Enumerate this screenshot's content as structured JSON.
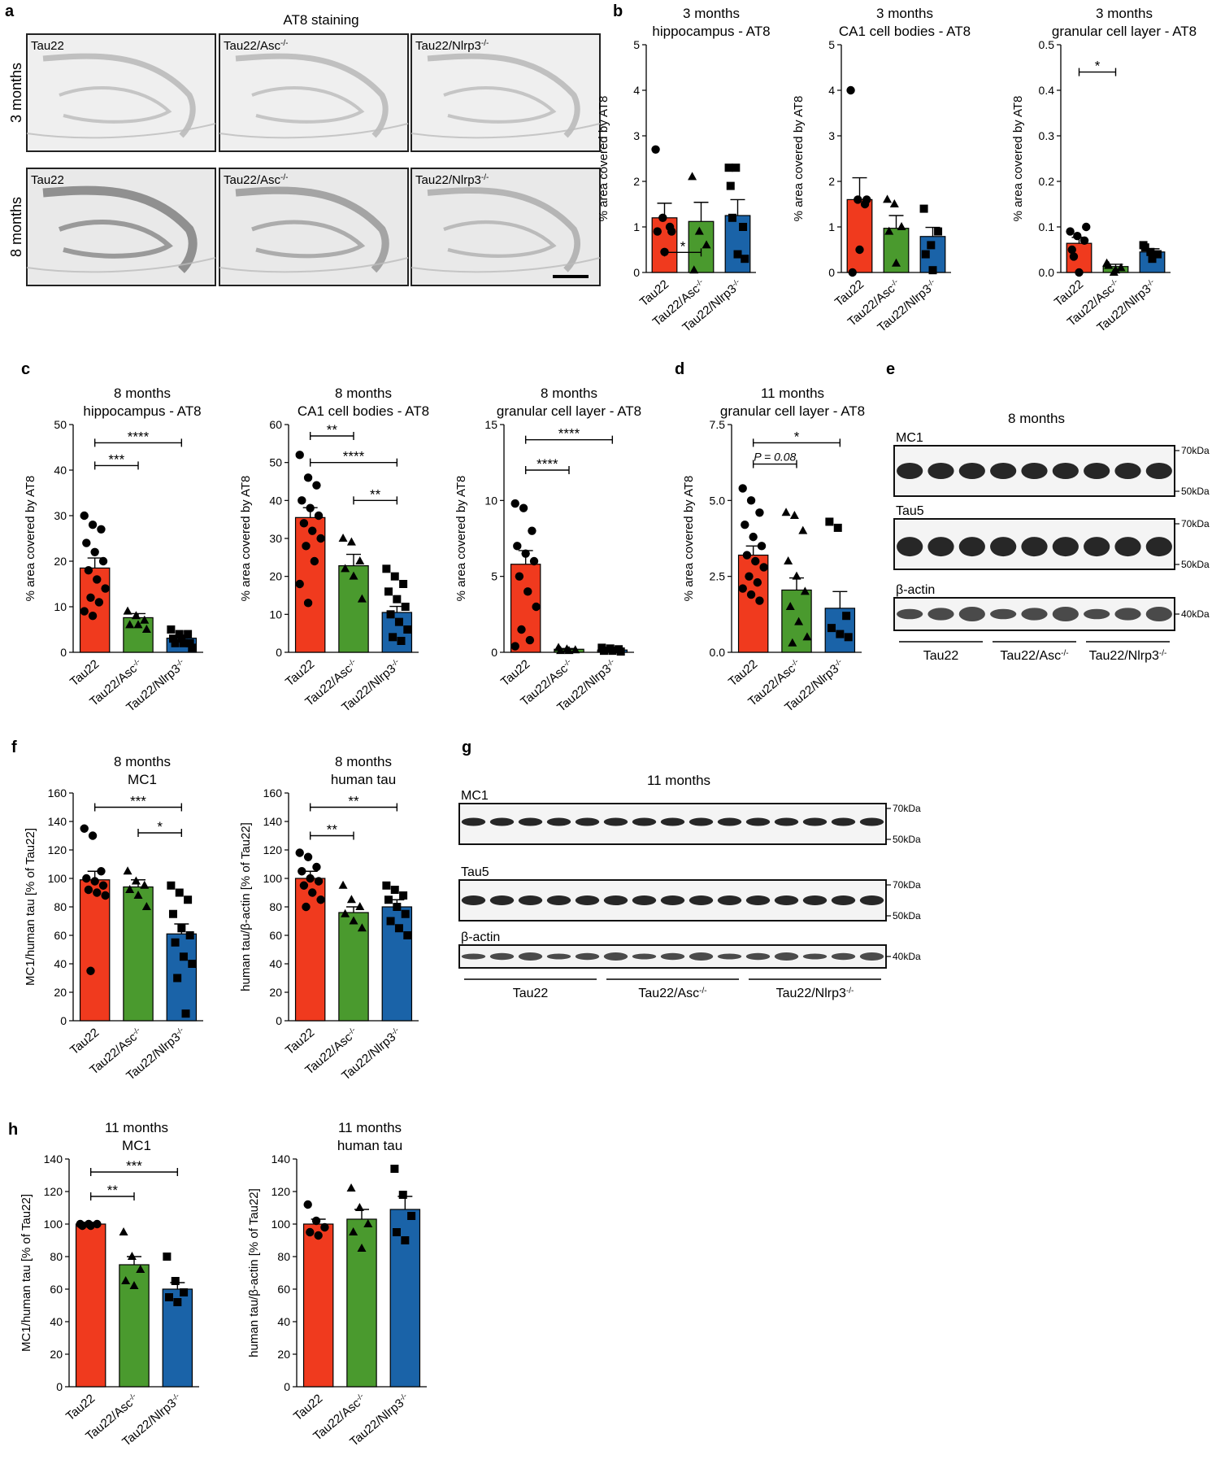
{
  "panel_labels": [
    "a",
    "b",
    "c",
    "d",
    "e",
    "f",
    "g",
    "h"
  ],
  "panel_a": {
    "title": "AT8 staining",
    "row_labels": [
      "3 months",
      "8 months"
    ],
    "column_tags": [
      "Tau22",
      "Tau22/Asc",
      "Tau22/Nlrp3"
    ],
    "knockout_sup": "-/-"
  },
  "groups": [
    "Tau22",
    "Tau22/Asc",
    "Tau22/Nlrp3"
  ],
  "knockout_sup": "-/-",
  "colors": {
    "tau22": "#f03a1e",
    "asc": "#4a9a2e",
    "nlrp3": "#1a63a8"
  },
  "chart_data": [
    {
      "id": "b1",
      "type": "bar",
      "title": [
        "3 months",
        "hippocampus - AT8"
      ],
      "ylabel": "% area covered by AT8",
      "ylim": [
        0,
        5
      ],
      "yticks": [
        "0",
        "1",
        "2",
        "3",
        "4",
        "5"
      ],
      "values": [
        1.2,
        1.12,
        1.25
      ],
      "errors": [
        0.32,
        0.42,
        0.35
      ],
      "points": [
        [
          2.7,
          1.2,
          1.0,
          0.9,
          0.45,
          0.9
        ],
        [
          2.1,
          0.9,
          0.6,
          0.05
        ],
        [
          2.3,
          2.3,
          1.0,
          1.9,
          0.4,
          0.3,
          1.2
        ]
      ],
      "sig": [
        {
          "a": 0,
          "b": 1,
          "label": "*",
          "y": 0.44
        }
      ]
    },
    {
      "id": "b2",
      "type": "bar",
      "title": [
        "3 months",
        "CA1 cell bodies - AT8"
      ],
      "ylabel": "% area covered by AT8",
      "ylim": [
        0,
        5
      ],
      "yticks": [
        "0",
        "1",
        "2",
        "3",
        "4",
        "5"
      ],
      "values": [
        1.6,
        0.97,
        0.79
      ],
      "errors": [
        0.48,
        0.28,
        0.2
      ],
      "points": [
        [
          4.0,
          1.6,
          1.5,
          0.0,
          0.5,
          1.6
        ],
        [
          1.6,
          1.5,
          1.0,
          0.9,
          0.2
        ],
        [
          1.4,
          0.6,
          0.9,
          0.4,
          0.05
        ]
      ],
      "sig": []
    },
    {
      "id": "b3",
      "type": "bar",
      "title": [
        "3 months",
        "granular cell layer - AT8"
      ],
      "ylabel": "% area covered by AT8",
      "ylim": [
        0,
        0.5
      ],
      "yticks": [
        "0.0",
        "0.1",
        "0.2",
        "0.3",
        "0.4",
        "0.5"
      ],
      "values": [
        0.064,
        0.013,
        0.045
      ],
      "errors": [
        0.013,
        0.005,
        0.007
      ],
      "points": [
        [
          0.09,
          0.08,
          0.07,
          0.05,
          0.0,
          0.1,
          0.035
        ],
        [
          0.02,
          0.0,
          0.01,
          0.015,
          0.005
        ],
        [
          0.06,
          0.045,
          0.04,
          0.055,
          0.03
        ]
      ],
      "sig": [
        {
          "a": 0,
          "b": 1,
          "label": "*",
          "y": 0.44
        }
      ]
    },
    {
      "id": "c1",
      "type": "bar",
      "title": [
        "8 months",
        "hippocampus - AT8"
      ],
      "ylabel": "% area covered by AT8",
      "ylim": [
        0,
        50
      ],
      "yticks": [
        "0",
        "10",
        "20",
        "30",
        "40",
        "50"
      ],
      "values": [
        18.5,
        7.6,
        3.1
      ],
      "errors": [
        2.2,
        0.9,
        0.4
      ],
      "points": [
        [
          30,
          28,
          27,
          24,
          22,
          20,
          18,
          16,
          14,
          12,
          11,
          9,
          8
        ],
        [
          9,
          8,
          7,
          6,
          6,
          5
        ],
        [
          5,
          4,
          4,
          3,
          3,
          2,
          2,
          2,
          1
        ]
      ],
      "sig": [
        {
          "a": 0,
          "b": 1,
          "label": "***",
          "y": 41
        },
        {
          "a": 0,
          "b": 2,
          "label": "****",
          "y": 46
        }
      ]
    },
    {
      "id": "c2",
      "type": "bar",
      "title": [
        "8 months",
        "CA1 cell bodies - AT8"
      ],
      "ylabel": "% area covered by AT8",
      "ylim": [
        0,
        60
      ],
      "yticks": [
        "0",
        "10",
        "20",
        "30",
        "40",
        "50",
        "60"
      ],
      "values": [
        35.5,
        22.8,
        10.5
      ],
      "errors": [
        2.6,
        3.0,
        1.6
      ],
      "points": [
        [
          52,
          46,
          44,
          40,
          38,
          36,
          34,
          32,
          30,
          28,
          24,
          18,
          13
        ],
        [
          30,
          29,
          24,
          22,
          20,
          14
        ],
        [
          22,
          20,
          18,
          16,
          14,
          12,
          10,
          8,
          6,
          4,
          3
        ]
      ],
      "sig": [
        {
          "a": 0,
          "b": 1,
          "label": "**",
          "y": 57
        },
        {
          "a": 0,
          "b": 2,
          "label": "****",
          "y": 50
        },
        {
          "a": 1,
          "b": 2,
          "label": "**",
          "y": 40
        }
      ]
    },
    {
      "id": "c3",
      "type": "bar",
      "title": [
        "8 months",
        "granular cell layer - AT8"
      ],
      "ylabel": "% area covered by AT8",
      "ylim": [
        0,
        15
      ],
      "yticks": [
        "0",
        "5",
        "10",
        "15"
      ],
      "values": [
        5.8,
        0.2,
        0.15
      ],
      "errors": [
        0.9,
        0.05,
        0.05
      ],
      "points": [
        [
          9.8,
          9.5,
          8,
          7,
          6.5,
          6,
          5,
          4,
          3,
          1.5,
          0.8,
          0.4
        ],
        [
          0.3,
          0.2,
          0.15,
          0.1,
          0.1
        ],
        [
          0.3,
          0.25,
          0.2,
          0.1,
          0.1,
          0.05
        ]
      ],
      "sig": [
        {
          "a": 0,
          "b": 1,
          "label": "****",
          "y": 12
        },
        {
          "a": 0,
          "b": 2,
          "label": "****",
          "y": 14
        }
      ]
    },
    {
      "id": "d1",
      "type": "bar",
      "title": [
        "11 months",
        "granular cell layer - AT8"
      ],
      "ylabel": "% area covered by AT8",
      "ylim": [
        0,
        7.5
      ],
      "yticks": [
        "0.0",
        "2.5",
        "5.0",
        "7.5"
      ],
      "values": [
        3.2,
        2.05,
        1.45
      ],
      "errors": [
        0.3,
        0.4,
        0.55
      ],
      "points": [
        [
          5.4,
          5.0,
          4.6,
          4.2,
          3.8,
          3.5,
          3.2,
          3.0,
          2.8,
          2.5,
          2.3,
          2.1,
          1.9,
          1.7
        ],
        [
          4.6,
          4.5,
          4.0,
          3.0,
          2.5,
          2.0,
          1.5,
          1.0,
          0.5,
          0.3
        ],
        [
          4.3,
          4.1,
          1.2,
          0.8,
          0.6,
          0.5
        ]
      ],
      "sig": [
        {
          "a": 0,
          "b": 1,
          "label": "P = 0.08",
          "y": 6.2
        },
        {
          "a": 0,
          "b": 2,
          "label": "*",
          "y": 6.9
        }
      ]
    },
    {
      "id": "f1",
      "type": "bar",
      "title": [
        "8 months",
        "MC1"
      ],
      "ylabel": "MC1/human tau [% of Tau22]",
      "ylim": [
        0,
        160
      ],
      "yticks": [
        "0",
        "20",
        "40",
        "60",
        "80",
        "100",
        "120",
        "140",
        "160"
      ],
      "values": [
        99,
        94,
        61
      ],
      "errors": [
        6,
        5,
        7
      ],
      "points": [
        [
          135,
          130,
          105,
          100,
          98,
          95,
          92,
          90,
          88,
          35
        ],
        [
          105,
          98,
          95,
          92,
          88,
          80
        ],
        [
          95,
          90,
          85,
          75,
          65,
          60,
          55,
          45,
          40,
          30,
          5
        ]
      ],
      "sig": [
        {
          "a": 0,
          "b": 2,
          "label": "***",
          "y": 150
        },
        {
          "a": 1,
          "b": 2,
          "label": "*",
          "y": 132
        }
      ]
    },
    {
      "id": "f2",
      "type": "bar",
      "title": [
        "8 months",
        "human tau"
      ],
      "ylabel": "human tau/β-actin [% of Tau22]",
      "ylim": [
        0,
        160
      ],
      "yticks": [
        "0",
        "20",
        "40",
        "60",
        "80",
        "100",
        "120",
        "140",
        "160"
      ],
      "values": [
        100,
        76,
        80
      ],
      "errors": [
        5,
        4,
        5
      ],
      "points": [
        [
          118,
          115,
          108,
          105,
          100,
          98,
          95,
          90,
          85,
          80
        ],
        [
          95,
          85,
          80,
          75,
          70,
          65
        ],
        [
          95,
          92,
          88,
          85,
          80,
          75,
          70,
          65,
          60
        ]
      ],
      "sig": [
        {
          "a": 0,
          "b": 1,
          "label": "**",
          "y": 130
        },
        {
          "a": 0,
          "b": 2,
          "label": "**",
          "y": 150
        }
      ]
    },
    {
      "id": "h1",
      "type": "bar",
      "title": [
        "11 months",
        "MC1"
      ],
      "ylabel": "MC1/human tau [% of Tau22]",
      "ylim": [
        0,
        140
      ],
      "yticks": [
        "0",
        "20",
        "40",
        "60",
        "80",
        "100",
        "120",
        "140"
      ],
      "values": [
        100,
        75,
        60
      ],
      "errors": [
        1,
        5,
        4
      ],
      "points": [
        [
          100,
          100,
          100,
          99,
          99
        ],
        [
          95,
          80,
          72,
          65,
          62
        ],
        [
          80,
          65,
          58,
          55,
          52
        ]
      ],
      "sig": [
        {
          "a": 0,
          "b": 1,
          "label": "**",
          "y": 117
        },
        {
          "a": 0,
          "b": 2,
          "label": "***",
          "y": 132
        }
      ]
    },
    {
      "id": "h2",
      "type": "bar",
      "title": [
        "11 months",
        "human tau"
      ],
      "ylabel": "human tau/β-actin [% of Tau22]",
      "ylim": [
        0,
        140
      ],
      "yticks": [
        "0",
        "20",
        "40",
        "60",
        "80",
        "100",
        "120",
        "140"
      ],
      "values": [
        100,
        103,
        109
      ],
      "errors": [
        3,
        6,
        8
      ],
      "points": [
        [
          112,
          102,
          98,
          95,
          93
        ],
        [
          122,
          110,
          100,
          95,
          85
        ],
        [
          134,
          118,
          105,
          95,
          90
        ]
      ],
      "sig": []
    }
  ],
  "blot_e": {
    "title": "8 months",
    "rows": [
      {
        "name": "MC1",
        "kda": [
          "70kDa",
          "50kDa"
        ]
      },
      {
        "name": "Tau5",
        "kda": [
          "70kDa",
          "50kDa"
        ]
      },
      {
        "name": "β-actin",
        "kda": [
          "40kDa"
        ]
      }
    ],
    "groups": [
      "Tau22",
      "Tau22/Asc",
      "Tau22/Nlrp3"
    ],
    "lanes": 9
  },
  "blot_g": {
    "title": "11 months",
    "rows": [
      {
        "name": "MC1",
        "kda": [
          "70kDa",
          "50kDa"
        ]
      },
      {
        "name": "Tau5",
        "kda": [
          "70kDa",
          "50kDa"
        ]
      },
      {
        "name": "β-actin",
        "kda": [
          "40kDa"
        ]
      }
    ],
    "groups": [
      "Tau22",
      "Tau22/Asc",
      "Tau22/Nlrp3"
    ],
    "lanes": 15
  }
}
